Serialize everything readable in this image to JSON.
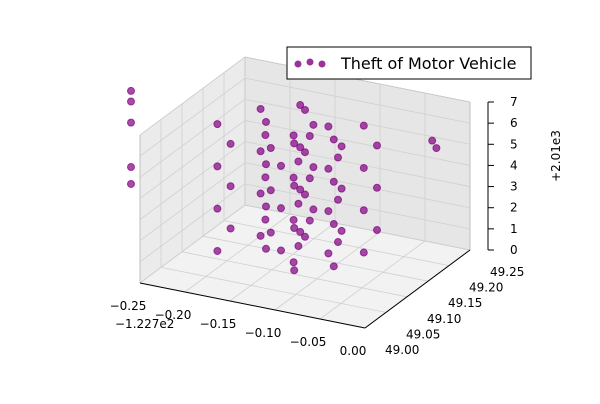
{
  "chart_data": {
    "type": "scatter3d",
    "x_offset_label": "−1.227e2",
    "z_offset_label": "+2.01e3",
    "xlim": [
      -0.25,
      0.0
    ],
    "ylim": [
      49.0,
      49.25
    ],
    "zlim": [
      0,
      7
    ],
    "xticks": [
      {
        "value": -0.25,
        "label": "−0.25"
      },
      {
        "value": -0.2,
        "label": "−0.20"
      },
      {
        "value": -0.15,
        "label": "−0.15"
      },
      {
        "value": -0.1,
        "label": "−0.10"
      },
      {
        "value": -0.05,
        "label": "−0.05"
      },
      {
        "value": 0.0,
        "label": "0.00"
      }
    ],
    "yticks": [
      {
        "value": 49.0,
        "label": "49.00"
      },
      {
        "value": 49.05,
        "label": "49.05"
      },
      {
        "value": 49.1,
        "label": "49.10"
      },
      {
        "value": 49.15,
        "label": "49.15"
      },
      {
        "value": 49.2,
        "label": "49.20"
      },
      {
        "value": 49.25,
        "label": "49.25"
      }
    ],
    "zticks": [
      0,
      1,
      2,
      3,
      4,
      5,
      6,
      7
    ],
    "grid": true,
    "legend": "upper right",
    "series": [
      {
        "name": "Theft of Motor Vehicle",
        "color": "#800080",
        "x": [
          -0.22,
          -0.2,
          -0.18,
          -0.16,
          -0.14,
          -0.12,
          -0.1,
          -0.09,
          -0.17,
          -0.13,
          -0.21,
          -0.19,
          -0.17,
          -0.15,
          -0.13,
          -0.11,
          -0.1,
          -0.08,
          -0.16,
          -0.14,
          -0.22,
          -0.2,
          -0.18,
          -0.16,
          -0.14,
          -0.12,
          -0.1,
          -0.09,
          -0.17,
          -0.13,
          -0.21,
          -0.19,
          -0.17,
          -0.15,
          -0.13,
          -0.11,
          -0.1,
          -0.08,
          -0.16,
          -0.14,
          -0.22,
          -0.2,
          -0.18,
          -0.16,
          -0.14,
          -0.12,
          -0.1,
          -0.09,
          -0.17,
          -0.13,
          -0.21,
          -0.19,
          -0.17,
          -0.15,
          -0.13,
          -0.11,
          -0.1,
          -0.08,
          -0.16,
          -0.14,
          -0.22,
          -0.2,
          -0.18,
          -0.16,
          -0.14,
          -0.12,
          -0.1,
          -0.09,
          -0.17,
          -0.13,
          -0.26,
          -0.26,
          -0.26,
          -0.26,
          -0.26,
          0.0,
          0.0
        ],
        "y": [
          49.12,
          49.18,
          49.15,
          49.2,
          49.13,
          49.17,
          49.14,
          49.19,
          49.21,
          49.11,
          49.13,
          49.17,
          49.14,
          49.19,
          49.12,
          49.18,
          49.15,
          49.2,
          49.22,
          49.1,
          49.12,
          49.18,
          49.15,
          49.2,
          49.13,
          49.17,
          49.14,
          49.19,
          49.21,
          49.11,
          49.13,
          49.17,
          49.14,
          49.19,
          49.12,
          49.18,
          49.15,
          49.2,
          49.22,
          49.1,
          49.12,
          49.18,
          49.15,
          49.2,
          49.13,
          49.17,
          49.14,
          49.19,
          49.21,
          49.11,
          49.13,
          49.17,
          49.14,
          49.19,
          49.12,
          49.18,
          49.15,
          49.2,
          49.22,
          49.1,
          49.12,
          49.18,
          49.15,
          49.2,
          49.13,
          49.17,
          49.14,
          49.19,
          49.21,
          49.11,
          49.0,
          49.0,
          49.0,
          49.0,
          49.0,
          49.16,
          49.17
        ],
        "z": [
          0,
          0,
          0,
          0,
          0,
          0,
          0,
          0,
          0,
          0,
          1,
          1,
          1,
          1,
          1,
          1,
          1,
          1,
          1,
          1,
          2,
          2,
          2,
          2,
          2,
          2,
          2,
          2,
          2,
          2,
          3,
          3,
          3,
          3,
          3,
          3,
          3,
          3,
          3,
          3,
          4,
          4,
          4,
          4,
          4,
          4,
          4,
          4,
          4,
          4,
          5,
          5,
          5,
          5,
          5,
          5,
          5,
          5,
          5,
          5,
          6,
          6,
          6,
          6,
          6,
          6,
          6,
          6,
          6,
          6,
          9.0,
          8.5,
          7.5,
          5.4,
          4.6,
          6.5,
          6.0
        ]
      }
    ]
  }
}
